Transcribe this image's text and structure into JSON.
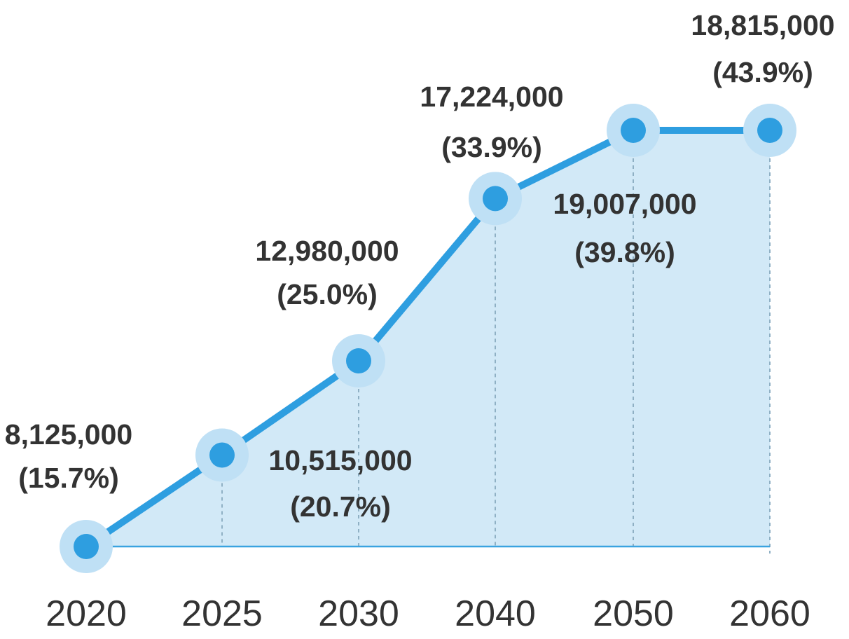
{
  "colors": {
    "line": "#2e9ee0",
    "area": "#d2e9f7",
    "halo": "#bfe0f5",
    "point": "#2e9ee0",
    "baseline": "#3aa3e0",
    "guide": "#8fb0c4",
    "text": "#333333"
  },
  "chart_data": {
    "type": "area",
    "title": "",
    "xlabel": "",
    "ylabel": "",
    "categories": [
      "2020",
      "2025",
      "2030",
      "2040",
      "2050",
      "2060"
    ],
    "series": [
      {
        "values": [
          8125000,
          10515000,
          12980000,
          17224000,
          19007000,
          18815000
        ],
        "value_labels": [
          "8,125,000",
          "10,515,000",
          "12,980,000",
          "17,224,000",
          "19,007,000",
          "18,815,000"
        ],
        "percent_labels": [
          "(15.7%)",
          "(20.7%)",
          "(25.0%)",
          "(33.9%)",
          "(39.8%)",
          "(43.9%)"
        ]
      }
    ],
    "ylim": [
      8125000,
      19007000
    ],
    "grid": false,
    "legend": "none"
  }
}
